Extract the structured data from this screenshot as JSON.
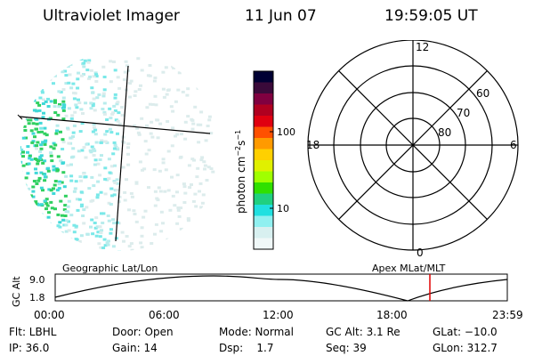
{
  "header": {
    "instrument": "Ultraviolet Imager",
    "date": "11 Jun 07",
    "time": "19:59:05 UT"
  },
  "colorbar": {
    "unit_label": "photon cm",
    "unit_exp1": "−2",
    "unit_mid": "s",
    "unit_exp2": "−1",
    "ticks": [
      "100",
      "10"
    ],
    "colors": [
      "#000033",
      "#3a0a3a",
      "#800040",
      "#b00020",
      "#e00010",
      "#ff5000",
      "#ff9a00",
      "#ffd000",
      "#e0f000",
      "#a0ff00",
      "#30e000",
      "#20d080",
      "#20e0e0",
      "#90f0f0",
      "#d8f0f0",
      "#f0f8f8"
    ]
  },
  "polar_plot": {
    "lat_labels": [
      "60",
      "70",
      "80"
    ],
    "mlt_labels": {
      "top": "12",
      "bottom": "0",
      "left": "18",
      "right": "6"
    }
  },
  "timeline": {
    "left_title": "Geographic Lat/Lon",
    "right_title": "Apex MLat/MLT",
    "y_axis_label": "GC Alt",
    "y_ticks": [
      "9.0",
      "1.8"
    ],
    "x_ticks": [
      "00:00",
      "06:00",
      "12:00",
      "18:00",
      "23:59"
    ],
    "marker_color": "#e00000"
  },
  "footer": {
    "flt": "Flt: LBHL",
    "ip": "IP: 36.0",
    "door": "Door: Open",
    "gain": "Gain: 14",
    "mode": "Mode: Normal",
    "dsp": "Dsp:    1.7",
    "gcalt": "GC Alt: 3.1 Re",
    "seq": "Seq: 39",
    "glat": "GLat: −10.0",
    "glon": "GLon: 312.7"
  }
}
